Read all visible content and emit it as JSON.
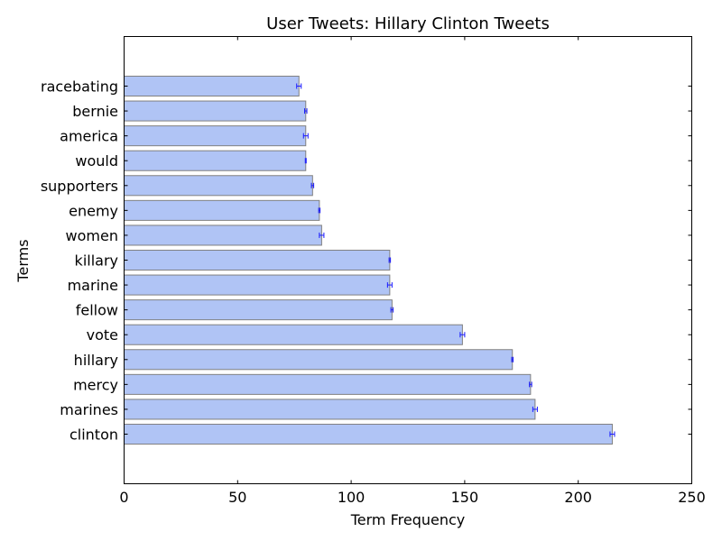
{
  "chart_data": {
    "type": "bar",
    "orientation": "horizontal",
    "title": "User Tweets: Hillary Clinton Tweets",
    "xlabel": "Term Frequency",
    "ylabel": "Terms",
    "xlim": [
      0,
      250
    ],
    "xticks": [
      0,
      50,
      100,
      150,
      200,
      250
    ],
    "grid": false,
    "categories": [
      "clinton",
      "marines",
      "mercy",
      "hillary",
      "vote",
      "fellow",
      "marine",
      "killary",
      "women",
      "enemy",
      "supporters",
      "would",
      "america",
      "bernie",
      "racebating"
    ],
    "values": [
      215,
      181,
      179,
      171,
      149,
      118,
      117,
      117,
      87,
      86,
      83,
      80,
      80,
      80,
      77
    ],
    "errors": [
      1,
      1,
      0.5,
      0.3,
      1,
      0.5,
      1,
      0.3,
      1,
      0.3,
      0.5,
      0.2,
      1,
      0.5,
      1
    ],
    "colors": {
      "bar": "#b0c4f5",
      "bar_edge": "#808080",
      "error_bar": "#1a1aff"
    }
  }
}
